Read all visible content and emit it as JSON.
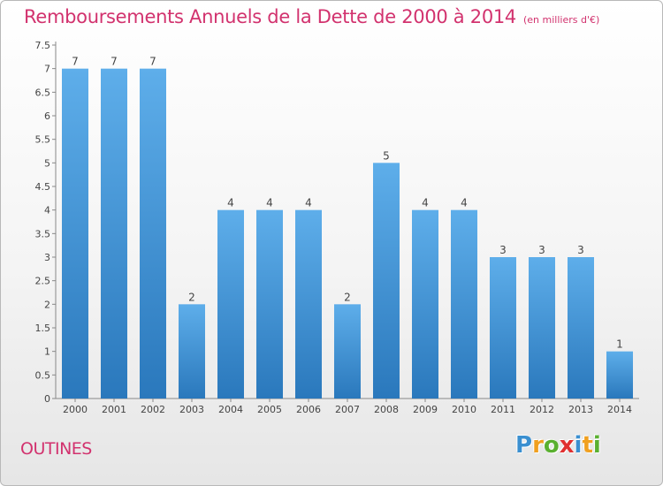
{
  "header": {
    "title": "Remboursements Annuels de la Dette de 2000 à 2014",
    "subtitle": "(en milliers d'€)"
  },
  "footer": {
    "commune": "OUTINES",
    "brand": "Proxiti",
    "brand_letters": [
      {
        "ch": "P",
        "color": "#3a8fd0"
      },
      {
        "ch": "r",
        "color": "#f0a020"
      },
      {
        "ch": "o",
        "color": "#5ab030"
      },
      {
        "ch": "x",
        "color": "#e03030"
      },
      {
        "ch": "i",
        "color": "#3a8fd0"
      },
      {
        "ch": "t",
        "color": "#f0a020"
      },
      {
        "ch": "i",
        "color": "#5ab030"
      }
    ]
  },
  "chart_data": {
    "type": "bar",
    "title": "Remboursements Annuels de la Dette de 2000 à 2014",
    "subtitle": "(en milliers d'€)",
    "categories": [
      "2000",
      "2001",
      "2002",
      "2003",
      "2004",
      "2005",
      "2006",
      "2007",
      "2008",
      "2009",
      "2010",
      "2011",
      "2012",
      "2013",
      "2014"
    ],
    "values": [
      7,
      7,
      7,
      2,
      4,
      4,
      4,
      2,
      5,
      4,
      4,
      3,
      3,
      3,
      1
    ],
    "data_labels": [
      "7",
      "7",
      "7",
      "2",
      "4",
      "4",
      "4",
      "2",
      "5",
      "4",
      "4",
      "3",
      "3",
      "3",
      "1"
    ],
    "yticks": [
      "0",
      "0.5",
      "1",
      "1.5",
      "2",
      "2.5",
      "3",
      "3.5",
      "4",
      "4.5",
      "5",
      "5.5",
      "6",
      "6.5",
      "7",
      "7.5"
    ],
    "ylim": [
      0,
      7.5
    ],
    "xlabel": "",
    "ylabel": "",
    "grid": false,
    "legend": "none",
    "bar_color_top": "#5eaeea",
    "bar_color_bottom": "#2a78bc"
  }
}
